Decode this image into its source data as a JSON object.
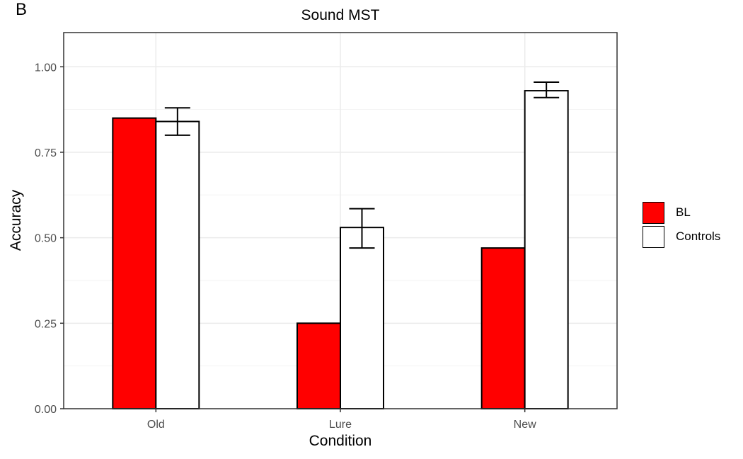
{
  "panel_label": "B",
  "colors": {
    "BL": "#ff0000",
    "Controls": "#ffffff",
    "grid": "#ebebeb",
    "axis": "#000000",
    "tick_text": "#4d4d4d"
  },
  "chart_data": {
    "type": "bar",
    "title": "Sound MST",
    "xlabel": "Condition",
    "ylabel": "Accuracy",
    "categories": [
      "Old",
      "Lure",
      "New"
    ],
    "ylim": [
      0,
      1.1
    ],
    "yticks": [
      0.0,
      0.25,
      0.5,
      0.75,
      1.0
    ],
    "ytick_labels": [
      "0.00",
      "0.25",
      "0.50",
      "0.75",
      "1.00"
    ],
    "grid": true,
    "legend_position": "right",
    "series": [
      {
        "name": "BL",
        "color": "#ff0000",
        "values": [
          0.85,
          0.25,
          0.47
        ]
      },
      {
        "name": "Controls",
        "color": "#ffffff",
        "values": [
          0.84,
          0.53,
          0.93
        ],
        "error_low": [
          0.8,
          0.47,
          0.91
        ],
        "error_high": [
          0.88,
          0.585,
          0.955
        ]
      }
    ]
  }
}
